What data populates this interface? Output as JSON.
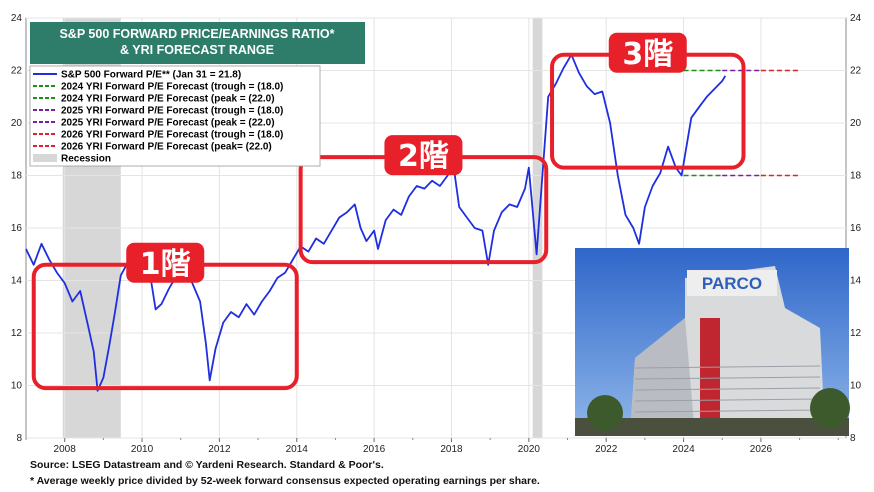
{
  "colors": {
    "title_bg": "#2e7d6b",
    "series": "#1f2fe0",
    "recession": "#d7d7d7",
    "highlight": "#e8202a",
    "green": "#1a8f1a",
    "purple": "#7a1fa2",
    "red": "#e0202a"
  },
  "chart_data": {
    "type": "line",
    "title_lines": [
      "S&P 500 FORWARD PRICE/EARNINGS RATIO*",
      "& YRI FORECAST RANGE"
    ],
    "xlim": [
      2007.0,
      2028.2
    ],
    "ylim": [
      8,
      24
    ],
    "y_ticks": [
      8,
      10,
      12,
      14,
      16,
      18,
      20,
      22,
      24
    ],
    "x_ticks": [
      2008,
      2010,
      2012,
      2014,
      2016,
      2018,
      2020,
      2022,
      2024,
      2026
    ],
    "grid": true,
    "legend_position": "top-left",
    "recessions": [
      [
        2007.95,
        2009.45
      ],
      [
        2020.1,
        2020.35
      ]
    ],
    "series": [
      {
        "name": "S&P 500 Forward P/E** (Jan 31 = 21.8)",
        "points": [
          [
            2007.0,
            15.2
          ],
          [
            2007.2,
            14.6
          ],
          [
            2007.4,
            15.4
          ],
          [
            2007.6,
            14.8
          ],
          [
            2007.8,
            14.3
          ],
          [
            2008.0,
            13.9
          ],
          [
            2008.2,
            13.2
          ],
          [
            2008.4,
            13.6
          ],
          [
            2008.6,
            12.3
          ],
          [
            2008.75,
            11.3
          ],
          [
            2008.85,
            9.8
          ],
          [
            2009.0,
            10.3
          ],
          [
            2009.15,
            11.5
          ],
          [
            2009.3,
            12.8
          ],
          [
            2009.45,
            14.2
          ],
          [
            2009.6,
            14.6
          ],
          [
            2009.8,
            14.3
          ],
          [
            2010.0,
            14.5
          ],
          [
            2010.2,
            14.3
          ],
          [
            2010.35,
            12.9
          ],
          [
            2010.5,
            13.1
          ],
          [
            2010.7,
            13.7
          ],
          [
            2010.9,
            14.2
          ],
          [
            2011.1,
            14.4
          ],
          [
            2011.3,
            13.9
          ],
          [
            2011.5,
            13.2
          ],
          [
            2011.65,
            11.6
          ],
          [
            2011.75,
            10.2
          ],
          [
            2011.9,
            11.4
          ],
          [
            2012.1,
            12.4
          ],
          [
            2012.3,
            12.8
          ],
          [
            2012.5,
            12.6
          ],
          [
            2012.7,
            13.1
          ],
          [
            2012.9,
            12.7
          ],
          [
            2013.1,
            13.2
          ],
          [
            2013.3,
            13.6
          ],
          [
            2013.5,
            14.1
          ],
          [
            2013.7,
            14.3
          ],
          [
            2013.9,
            14.8
          ],
          [
            2014.1,
            15.3
          ],
          [
            2014.3,
            15.1
          ],
          [
            2014.5,
            15.6
          ],
          [
            2014.7,
            15.4
          ],
          [
            2014.9,
            15.9
          ],
          [
            2015.1,
            16.4
          ],
          [
            2015.3,
            16.6
          ],
          [
            2015.5,
            16.9
          ],
          [
            2015.65,
            16.0
          ],
          [
            2015.8,
            15.5
          ],
          [
            2016.0,
            15.9
          ],
          [
            2016.1,
            15.2
          ],
          [
            2016.3,
            16.3
          ],
          [
            2016.5,
            16.7
          ],
          [
            2016.7,
            16.5
          ],
          [
            2016.9,
            17.2
          ],
          [
            2017.1,
            17.6
          ],
          [
            2017.3,
            17.5
          ],
          [
            2017.5,
            17.8
          ],
          [
            2017.7,
            17.6
          ],
          [
            2017.9,
            18.0
          ],
          [
            2018.05,
            18.4
          ],
          [
            2018.2,
            16.8
          ],
          [
            2018.4,
            16.4
          ],
          [
            2018.6,
            16.0
          ],
          [
            2018.8,
            15.9
          ],
          [
            2018.95,
            14.6
          ],
          [
            2019.1,
            15.9
          ],
          [
            2019.3,
            16.6
          ],
          [
            2019.5,
            16.9
          ],
          [
            2019.7,
            16.8
          ],
          [
            2019.9,
            17.5
          ],
          [
            2020.0,
            18.3
          ],
          [
            2020.2,
            15.0
          ],
          [
            2020.35,
            18.0
          ],
          [
            2020.5,
            21.0
          ],
          [
            2020.7,
            21.5
          ],
          [
            2020.9,
            22.1
          ],
          [
            2021.1,
            22.6
          ],
          [
            2021.3,
            21.9
          ],
          [
            2021.5,
            21.4
          ],
          [
            2021.7,
            21.1
          ],
          [
            2021.9,
            21.2
          ],
          [
            2022.1,
            20.0
          ],
          [
            2022.3,
            18.0
          ],
          [
            2022.5,
            16.5
          ],
          [
            2022.7,
            16.0
          ],
          [
            2022.85,
            15.4
          ],
          [
            2023.0,
            16.8
          ],
          [
            2023.2,
            17.6
          ],
          [
            2023.4,
            18.1
          ],
          [
            2023.6,
            19.1
          ],
          [
            2023.8,
            18.3
          ],
          [
            2023.95,
            18.0
          ],
          [
            2024.2,
            20.2
          ],
          [
            2024.4,
            20.6
          ],
          [
            2024.6,
            21.0
          ],
          [
            2024.8,
            21.3
          ],
          [
            2025.0,
            21.6
          ],
          [
            2025.08,
            21.8
          ]
        ]
      }
    ],
    "legend": [
      {
        "label": "S&P 500 Forward P/E** (Jan 31 = 21.8)",
        "color": "#1f2fe0",
        "style": "solid"
      },
      {
        "label": "2024 YRI Forward P/E Forecast (trough = (18.0)",
        "color": "#1a8f1a",
        "style": "dashed"
      },
      {
        "label": "2024 YRI Forward P/E Forecast (peak = (22.0)",
        "color": "#1a8f1a",
        "style": "dashed"
      },
      {
        "label": "2025 YRI Forward P/E Forecast (trough = (18.0)",
        "color": "#7a1fa2",
        "style": "dashed"
      },
      {
        "label": "2025 YRI Forward P/E Forecast (peak = (22.0)",
        "color": "#7a1fa2",
        "style": "dashed"
      },
      {
        "label": "2026 YRI Forward P/E Forecast (trough = (18.0)",
        "color": "#e0202a",
        "style": "dashed"
      },
      {
        "label": "2026 YRI Forward P/E Forecast (peak= (22.0)",
        "color": "#e0202a",
        "style": "dashed"
      },
      {
        "label": "Recession",
        "color": "#d7d7d7",
        "style": "box"
      }
    ],
    "forecast_lines": [
      {
        "from": 2024.0,
        "to": 2025.0,
        "values": [
          18,
          22
        ],
        "color": "#1a8f1a"
      },
      {
        "from": 2025.0,
        "to": 2026.0,
        "values": [
          18,
          22
        ],
        "color": "#7a1fa2"
      },
      {
        "from": 2026.0,
        "to": 2027.0,
        "values": [
          18,
          22
        ],
        "color": "#e0202a"
      }
    ],
    "annotations": [
      {
        "label": "1階",
        "x0": 2007.2,
        "x1": 2014.0,
        "y0": 9.9,
        "y1": 14.6
      },
      {
        "label": "2階",
        "x0": 2014.1,
        "x1": 2020.45,
        "y0": 14.7,
        "y1": 18.7
      },
      {
        "label": "3階",
        "x0": 2020.6,
        "x1": 2025.55,
        "y0": 18.3,
        "y1": 22.6
      }
    ]
  },
  "notes": [
    "Source: LSEG Datastream and © Yardeni Research. Standard & Poor's.",
    "* Average weekly price divided by 52-week forward consensus expected operating earnings per share."
  ],
  "photo": {
    "sign_text": "PARCO"
  }
}
